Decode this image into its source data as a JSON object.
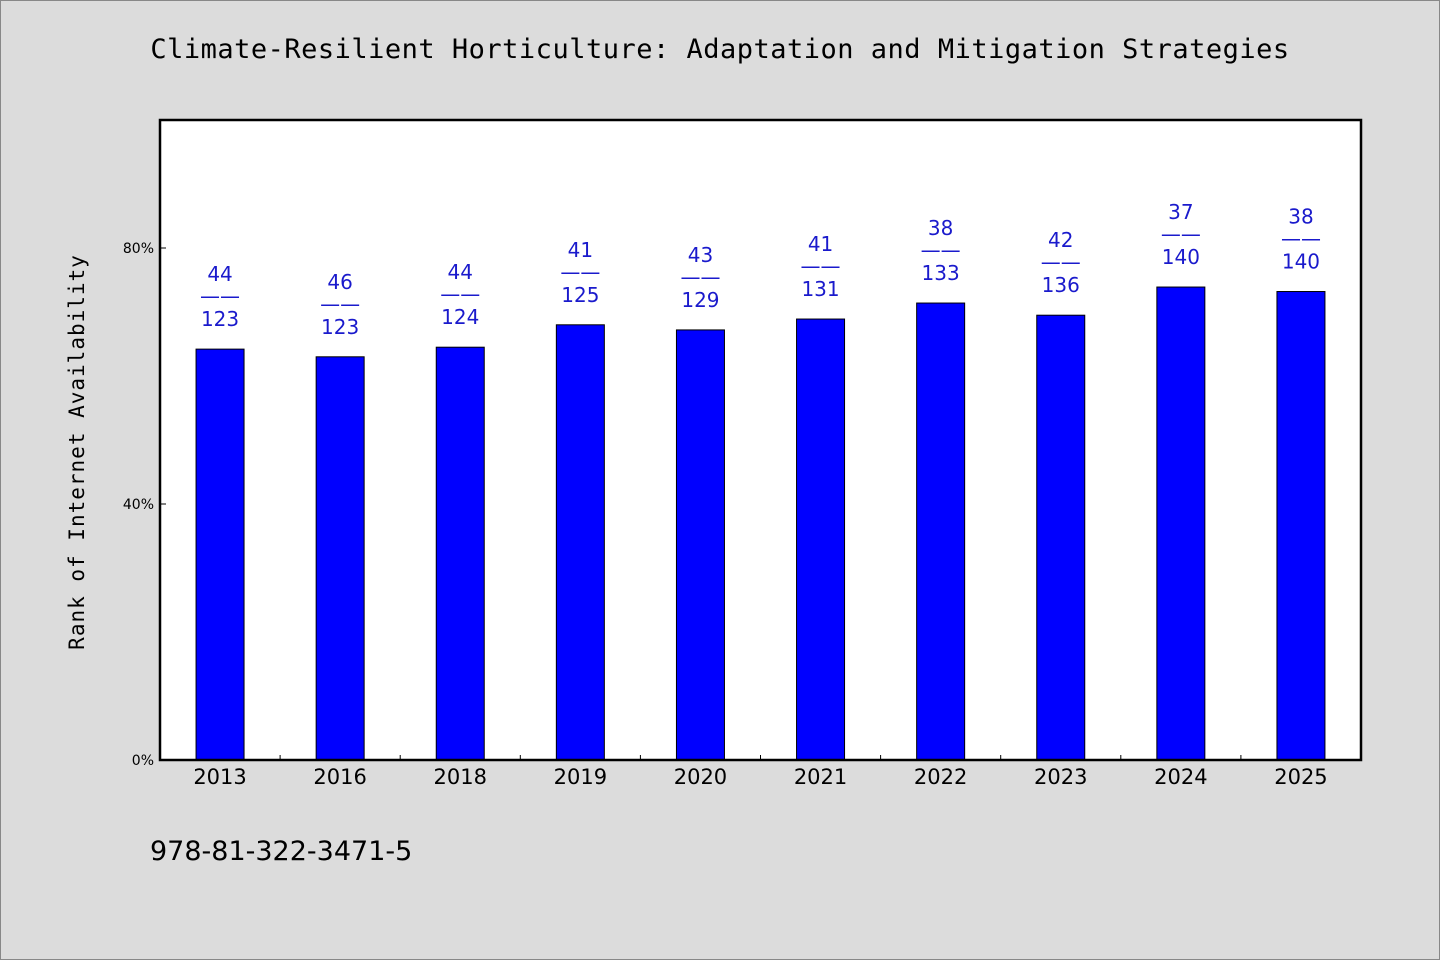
{
  "chart_data": {
    "type": "bar",
    "title": "Climate-Resilient Horticulture: Adaptation and Mitigation Strategies",
    "xlabel": "",
    "ylabel": "Rank of Internet Availability",
    "ylim": [
      0,
      100
    ],
    "yticks": [
      0,
      40,
      80
    ],
    "ytick_labels": [
      "0%",
      "40%",
      "80%"
    ],
    "categories": [
      "2013",
      "2016",
      "2018",
      "2019",
      "2020",
      "2021",
      "2022",
      "2023",
      "2024",
      "2025"
    ],
    "values": [
      64.2,
      63.0,
      64.5,
      68.0,
      67.2,
      68.9,
      71.4,
      69.5,
      73.9,
      73.2
    ],
    "data_labels": [
      {
        "top": "44",
        "sep": "——",
        "bottom": "123"
      },
      {
        "top": "46",
        "sep": "——",
        "bottom": "123"
      },
      {
        "top": "44",
        "sep": "——",
        "bottom": "124"
      },
      {
        "top": "41",
        "sep": "——",
        "bottom": "125"
      },
      {
        "top": "43",
        "sep": "——",
        "bottom": "129"
      },
      {
        "top": "41",
        "sep": "——",
        "bottom": "131"
      },
      {
        "top": "38",
        "sep": "——",
        "bottom": "133"
      },
      {
        "top": "42",
        "sep": "——",
        "bottom": "136"
      },
      {
        "top": "37",
        "sep": "——",
        "bottom": "140"
      },
      {
        "top": "38",
        "sep": "——",
        "bottom": "140"
      }
    ],
    "bar_color": "#0000ff",
    "label_color": "#1a1acc",
    "grid": false,
    "legend": "none"
  },
  "footer": {
    "isbn": "978-81-322-3471-5"
  },
  "colors": {
    "background": "#dcdcdc",
    "plot_background": "#ffffff"
  }
}
